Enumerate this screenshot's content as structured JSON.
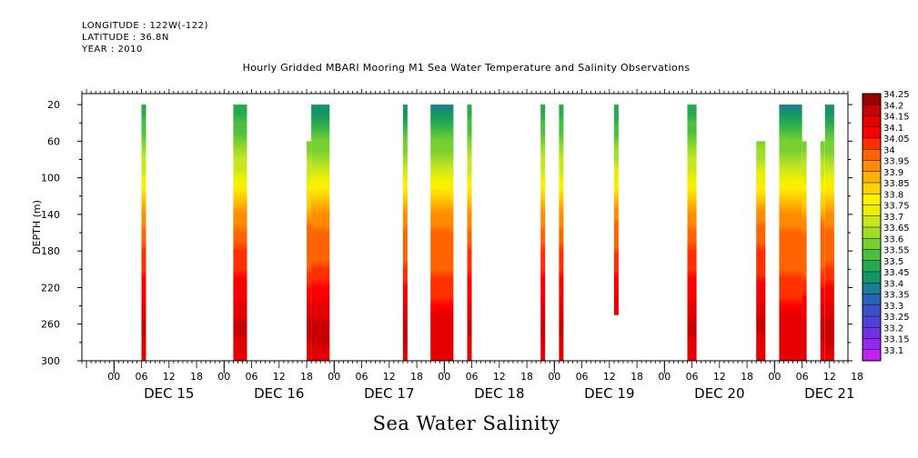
{
  "meta": {
    "longitude": "LONGITUDE : 122W(-122)",
    "latitude": "LATITUDE : 36.8N",
    "year": "YEAR : 2010"
  },
  "chart_title": "Hourly Gridded MBARI Mooring M1 Sea Water Temperature and Salinity Observations",
  "caption": "Sea Water Salinity",
  "chart_data": {
    "type": "heatmap",
    "title": "Hourly Gridded MBARI Mooring M1 Sea Water Temperature and Salinity Observations",
    "ylabel": "DEPTH (m)",
    "xlabel": "",
    "y_ticks": [
      20,
      60,
      100,
      140,
      180,
      220,
      260,
      300
    ],
    "ylim": [
      300,
      0
    ],
    "x_hour_ticks": [
      "00",
      "06",
      "12",
      "18",
      "00",
      "06",
      "12",
      "18",
      "00",
      "06",
      "12",
      "18",
      "00",
      "06",
      "12",
      "18",
      "00",
      "06",
      "12",
      "18",
      "00",
      "06",
      "12",
      "18",
      "00",
      "06",
      "12",
      "18"
    ],
    "x_day_labels": [
      "DEC 15",
      "DEC 16",
      "DEC 17",
      "DEC 18",
      "DEC 19",
      "DEC 20",
      "DEC 21"
    ],
    "x_range_hours": [
      -7,
      160
    ],
    "colorbar_levels": [
      "34.25",
      "34.2",
      "34.15",
      "34.1",
      "34.05",
      "34",
      "33.95",
      "33.9",
      "33.85",
      "33.8",
      "33.75",
      "33.7",
      "33.65",
      "33.6",
      "33.55",
      "33.5",
      "33.45",
      "33.4",
      "33.35",
      "33.3",
      "33.25",
      "33.2",
      "33.15",
      "33.1"
    ],
    "colorbar_colors": [
      "#9a0000",
      "#c80000",
      "#e40000",
      "#fc0000",
      "#ff3000",
      "#ff6400",
      "#ff8c00",
      "#ffb000",
      "#ffd200",
      "#fff000",
      "#e8f000",
      "#c8e620",
      "#a0dc28",
      "#78d030",
      "#4cbe40",
      "#28a850",
      "#149664",
      "#1c7c96",
      "#2864b4",
      "#3c50c8",
      "#5040d8",
      "#6e32e4",
      "#9628ec",
      "#c020f0"
    ],
    "columns": [
      {
        "start": 6,
        "end": 7,
        "top": 20,
        "bottom": 300,
        "profile": "c"
      },
      {
        "start": 26,
        "end": 29,
        "top": 20,
        "bottom": 300,
        "profile": "c"
      },
      {
        "start": 42,
        "end": 43,
        "top": 60,
        "bottom": 300,
        "profile": "b"
      },
      {
        "start": 43,
        "end": 47,
        "top": 20,
        "bottom": 300,
        "profile": "b"
      },
      {
        "start": 63,
        "end": 64,
        "top": 20,
        "bottom": 300,
        "profile": "b"
      },
      {
        "start": 69,
        "end": 74,
        "top": 20,
        "bottom": 300,
        "profile": "a"
      },
      {
        "start": 77,
        "end": 78,
        "top": 20,
        "bottom": 300,
        "profile": "c"
      },
      {
        "start": 93,
        "end": 94,
        "top": 20,
        "bottom": 300,
        "profile": "c"
      },
      {
        "start": 97,
        "end": 98,
        "top": 20,
        "bottom": 300,
        "profile": "c"
      },
      {
        "start": 109,
        "end": 110,
        "top": 20,
        "bottom": 250,
        "profile": "c"
      },
      {
        "start": 125,
        "end": 127,
        "top": 20,
        "bottom": 300,
        "profile": "c"
      },
      {
        "start": 140,
        "end": 142,
        "top": 60,
        "bottom": 300,
        "profile": "c"
      },
      {
        "start": 145,
        "end": 150,
        "top": 20,
        "bottom": 300,
        "profile": "a"
      },
      {
        "start": 150,
        "end": 151,
        "top": 60,
        "bottom": 300,
        "profile": "a"
      },
      {
        "start": 154,
        "end": 155,
        "top": 60,
        "bottom": 300,
        "profile": "b"
      },
      {
        "start": 155,
        "end": 157,
        "top": 20,
        "bottom": 300,
        "profile": "b"
      },
      {
        "start": 164,
        "end": 165,
        "top": 20,
        "bottom": 40,
        "profile": "d"
      },
      {
        "start": 164,
        "end": 165,
        "top": 80,
        "bottom": 300,
        "profile": "c"
      }
    ],
    "profiles": {
      "a": [
        [
          20,
          33.42
        ],
        [
          40,
          33.5
        ],
        [
          60,
          33.6
        ],
        [
          80,
          33.68
        ],
        [
          100,
          33.75
        ],
        [
          120,
          33.85
        ],
        [
          140,
          33.95
        ],
        [
          160,
          34.0
        ],
        [
          200,
          34.02
        ],
        [
          220,
          34.08
        ],
        [
          240,
          34.12
        ],
        [
          260,
          34.18
        ],
        [
          300,
          34.15
        ]
      ],
      "b": [
        [
          20,
          33.45
        ],
        [
          40,
          33.52
        ],
        [
          60,
          33.6
        ],
        [
          80,
          33.68
        ],
        [
          100,
          33.76
        ],
        [
          120,
          33.85
        ],
        [
          140,
          33.95
        ],
        [
          160,
          34.02
        ],
        [
          200,
          34.05
        ],
        [
          220,
          34.1
        ],
        [
          240,
          34.15
        ],
        [
          260,
          34.22
        ],
        [
          300,
          34.18
        ]
      ],
      "c": [
        [
          20,
          33.5
        ],
        [
          40,
          33.55
        ],
        [
          60,
          33.62
        ],
        [
          80,
          33.7
        ],
        [
          100,
          33.78
        ],
        [
          120,
          33.88
        ],
        [
          140,
          33.98
        ],
        [
          180,
          34.05
        ],
        [
          220,
          34.12
        ],
        [
          260,
          34.22
        ],
        [
          300,
          34.15
        ]
      ],
      "d": [
        [
          20,
          33.48
        ],
        [
          40,
          33.48
        ]
      ]
    },
    "grid": false,
    "legend": "colorbar-right"
  }
}
